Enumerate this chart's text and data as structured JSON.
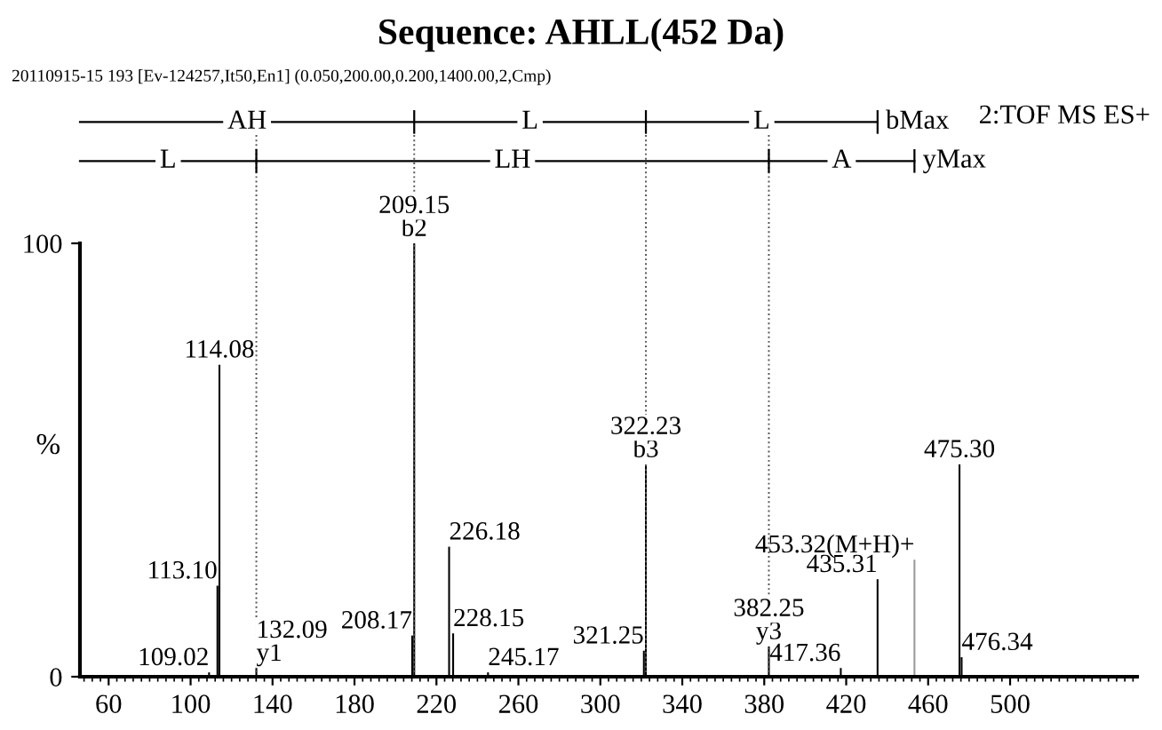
{
  "chart_data": {
    "type": "bar",
    "title": "Sequence: AHLL(452 Da)",
    "subtitle": "20110915-15 193 [Ev-124257,It50,En1] (0.050,200.00,0.200,1400.00,2,Cmp)",
    "ylabel": "%",
    "x": [
      109.02,
      113.1,
      114.08,
      132.09,
      208.17,
      209.15,
      226.18,
      228.15,
      245.17,
      321.25,
      322.23,
      382.25,
      417.36,
      435.31,
      453.32,
      475.3,
      476.34
    ],
    "values": [
      1,
      21,
      72,
      2,
      9.5,
      100,
      30,
      10,
      1,
      6,
      49,
      7,
      2,
      22.5,
      27,
      49,
      4.5
    ],
    "colors": [
      "#000000",
      "#000000",
      "#000000",
      "#000000",
      "#000000",
      "#000000",
      "#000000",
      "#000000",
      "#000000",
      "#000000",
      "#000000",
      "#000000",
      "#000000",
      "#000000",
      "#999999",
      "#000000",
      "#000000"
    ],
    "xlim": [
      46,
      562
    ],
    "ylim": [
      0,
      100
    ],
    "xticks": [
      60,
      100,
      140,
      180,
      220,
      260,
      300,
      340,
      380,
      420,
      460,
      500
    ],
    "yticks": [
      0,
      100
    ],
    "grid": false,
    "ref_lines": [
      {
        "axis": "x",
        "value": 132.09,
        "line_style": "dotted"
      },
      {
        "axis": "x",
        "value": 209.15,
        "line_style": "dotted"
      },
      {
        "axis": "x",
        "value": 322.23,
        "line_style": "dotted"
      },
      {
        "axis": "x",
        "value": 382.25,
        "line_style": "dotted"
      }
    ],
    "annotations": [
      "2:TOF MS ES+",
      "AH",
      "L",
      "L",
      "bMax",
      "L",
      "LH",
      "A",
      "yMax",
      {
        "text": "109.02",
        "x": 109.02,
        "y": 1
      },
      {
        "text": "113.10",
        "x": 113.1,
        "y": 21
      },
      {
        "text": "114.08",
        "x": 114.08,
        "y": 72
      },
      {
        "text": "132.09",
        "x": 132.09,
        "y": 2
      },
      {
        "text": "208.17",
        "x": 208.17,
        "y": 9.5
      },
      {
        "text": "209.15",
        "x": 209.15,
        "y": 100
      },
      {
        "text": "226.18",
        "x": 226.18,
        "y": 30
      },
      {
        "text": "228.15",
        "x": 228.15,
        "y": 10
      },
      {
        "text": "245.17",
        "x": 245.17,
        "y": 1
      },
      {
        "text": "321.25",
        "x": 321.25,
        "y": 6
      },
      {
        "text": "322.23",
        "x": 322.23,
        "y": 49
      },
      {
        "text": "382.25",
        "x": 382.25,
        "y": 7
      },
      {
        "text": "417.36",
        "x": 417.36,
        "y": 2
      },
      {
        "text": "435.31",
        "x": 435.31,
        "y": 22.5
      },
      {
        "text": "453.32(M+H)+",
        "x": 453.32,
        "y": 27
      },
      {
        "text": "475.30",
        "x": 475.3,
        "y": 49
      },
      {
        "text": "476.34",
        "x": 476.34,
        "y": 4.5
      },
      {
        "text": "b2",
        "x": 209.15,
        "y": 100
      },
      {
        "text": "b3",
        "x": 322.23,
        "y": 49
      },
      {
        "text": "y1",
        "x": 132.09,
        "y": 2
      },
      {
        "text": "y3",
        "x": 382.25,
        "y": 7
      }
    ]
  }
}
